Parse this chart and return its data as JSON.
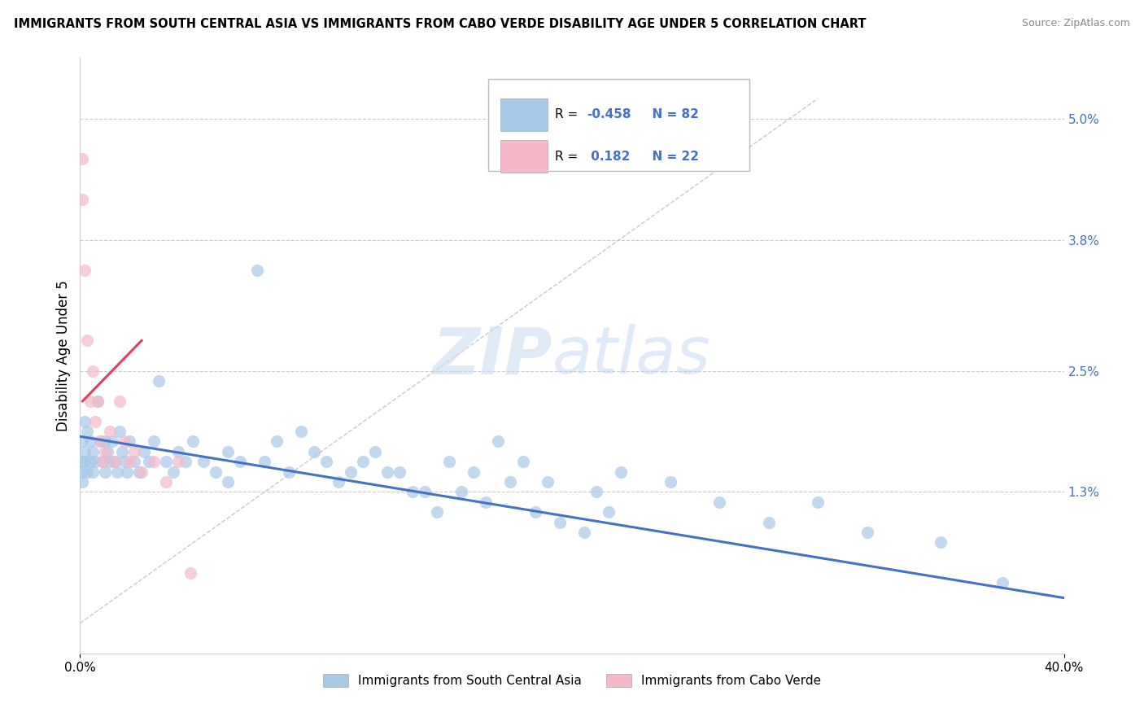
{
  "title": "IMMIGRANTS FROM SOUTH CENTRAL ASIA VS IMMIGRANTS FROM CABO VERDE DISABILITY AGE UNDER 5 CORRELATION CHART",
  "source": "Source: ZipAtlas.com",
  "ylabel": "Disability Age Under 5",
  "right_yticks": [
    "5.0%",
    "3.8%",
    "2.5%",
    "1.3%"
  ],
  "right_ytick_vals": [
    0.05,
    0.038,
    0.025,
    0.013
  ],
  "xlim": [
    0.0,
    0.4
  ],
  "ylim": [
    -0.003,
    0.056
  ],
  "legend_r1": "R = ",
  "legend_v1": "-0.458",
  "legend_n1": "  N = 82",
  "legend_r2": "R =  ",
  "legend_v2": "0.182",
  "legend_n2": "  N = 22",
  "legend_bottom1": "Immigrants from South Central Asia",
  "legend_bottom2": "Immigrants from Cabo Verde",
  "blue_color": "#A8C8E8",
  "pink_color": "#F4B8C8",
  "line_blue": "#4472C4",
  "line_pink": "#E04060",
  "line_gray_color": "#C8C8C8",
  "blue_scatter_x": [
    0.001,
    0.001,
    0.001,
    0.001,
    0.002,
    0.002,
    0.002,
    0.003,
    0.003,
    0.004,
    0.004,
    0.005,
    0.005,
    0.006,
    0.007,
    0.008,
    0.009,
    0.01,
    0.01,
    0.011,
    0.012,
    0.013,
    0.014,
    0.015,
    0.016,
    0.017,
    0.018,
    0.019,
    0.02,
    0.022,
    0.024,
    0.026,
    0.028,
    0.03,
    0.032,
    0.035,
    0.038,
    0.04,
    0.043,
    0.046,
    0.05,
    0.055,
    0.06,
    0.065,
    0.072,
    0.08,
    0.09,
    0.1,
    0.11,
    0.12,
    0.13,
    0.14,
    0.15,
    0.16,
    0.17,
    0.18,
    0.19,
    0.21,
    0.22,
    0.24,
    0.26,
    0.28,
    0.3,
    0.32,
    0.35,
    0.375,
    0.06,
    0.075,
    0.085,
    0.095,
    0.105,
    0.115,
    0.125,
    0.135,
    0.145,
    0.155,
    0.165,
    0.175,
    0.185,
    0.195,
    0.205,
    0.215
  ],
  "blue_scatter_y": [
    0.018,
    0.016,
    0.015,
    0.014,
    0.02,
    0.017,
    0.016,
    0.019,
    0.015,
    0.018,
    0.016,
    0.017,
    0.015,
    0.016,
    0.022,
    0.018,
    0.016,
    0.018,
    0.015,
    0.017,
    0.016,
    0.018,
    0.016,
    0.015,
    0.019,
    0.017,
    0.016,
    0.015,
    0.018,
    0.016,
    0.015,
    0.017,
    0.016,
    0.018,
    0.024,
    0.016,
    0.015,
    0.017,
    0.016,
    0.018,
    0.016,
    0.015,
    0.017,
    0.016,
    0.035,
    0.018,
    0.019,
    0.016,
    0.015,
    0.017,
    0.015,
    0.013,
    0.016,
    0.015,
    0.018,
    0.016,
    0.014,
    0.013,
    0.015,
    0.014,
    0.012,
    0.01,
    0.012,
    0.009,
    0.008,
    0.004,
    0.014,
    0.016,
    0.015,
    0.017,
    0.014,
    0.016,
    0.015,
    0.013,
    0.011,
    0.013,
    0.012,
    0.014,
    0.011,
    0.01,
    0.009,
    0.011
  ],
  "pink_scatter_x": [
    0.001,
    0.001,
    0.002,
    0.003,
    0.004,
    0.005,
    0.006,
    0.007,
    0.008,
    0.009,
    0.01,
    0.012,
    0.014,
    0.016,
    0.018,
    0.02,
    0.022,
    0.025,
    0.03,
    0.035,
    0.04,
    0.045
  ],
  "pink_scatter_y": [
    0.046,
    0.042,
    0.035,
    0.028,
    0.022,
    0.025,
    0.02,
    0.022,
    0.018,
    0.016,
    0.017,
    0.019,
    0.016,
    0.022,
    0.018,
    0.016,
    0.017,
    0.015,
    0.016,
    0.014,
    0.016,
    0.005
  ],
  "blue_line_x0": 0.0,
  "blue_line_y0": 0.0185,
  "blue_line_x1": 0.4,
  "blue_line_y1": 0.0025,
  "pink_line_x0": 0.001,
  "pink_line_y0": 0.022,
  "pink_line_x1": 0.025,
  "pink_line_y1": 0.028,
  "gray_line_x0": 0.0,
  "gray_line_y0": 0.0,
  "gray_line_x1": 0.3,
  "gray_line_y1": 0.052
}
